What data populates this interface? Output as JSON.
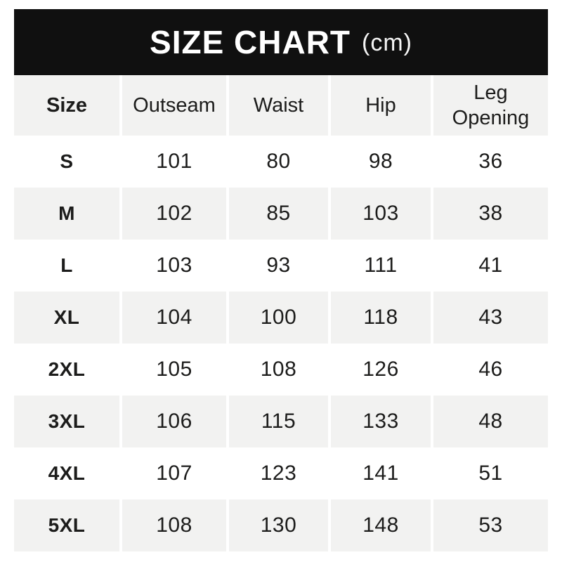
{
  "header": {
    "title": "SIZE CHART",
    "unit": "(cm)"
  },
  "table": {
    "columns": [
      "Size",
      "Outseam",
      "Waist",
      "Hip",
      "Leg Opening"
    ],
    "rows": [
      {
        "size": "S",
        "values": [
          "101",
          "80",
          "98",
          "36"
        ]
      },
      {
        "size": "M",
        "values": [
          "102",
          "85",
          "103",
          "38"
        ]
      },
      {
        "size": "L",
        "values": [
          "103",
          "93",
          "111",
          "41"
        ]
      },
      {
        "size": "XL",
        "values": [
          "104",
          "100",
          "118",
          "43"
        ]
      },
      {
        "size": "2XL",
        "values": [
          "105",
          "108",
          "126",
          "46"
        ]
      },
      {
        "size": "3XL",
        "values": [
          "106",
          "115",
          "133",
          "48"
        ]
      },
      {
        "size": "4XL",
        "values": [
          "107",
          "123",
          "141",
          "51"
        ]
      },
      {
        "size": "5XL",
        "values": [
          "108",
          "130",
          "148",
          "53"
        ]
      }
    ]
  },
  "colors": {
    "title_bar_bg": "#101010",
    "title_text": "#ffffff",
    "row_alt_bg": "#f2f2f1",
    "text": "#1c1c1b",
    "page_bg": "#ffffff"
  },
  "chart_data": {
    "type": "table",
    "title": "SIZE CHART (cm)",
    "units": "cm",
    "columns": [
      "Size",
      "Outseam",
      "Waist",
      "Hip",
      "Leg Opening"
    ],
    "rows": [
      [
        "S",
        101,
        80,
        98,
        36
      ],
      [
        "M",
        102,
        85,
        103,
        38
      ],
      [
        "L",
        103,
        93,
        111,
        41
      ],
      [
        "XL",
        104,
        100,
        118,
        43
      ],
      [
        "2XL",
        105,
        108,
        126,
        46
      ],
      [
        "3XL",
        106,
        115,
        133,
        48
      ],
      [
        "4XL",
        107,
        123,
        141,
        51
      ],
      [
        "5XL",
        108,
        130,
        148,
        53
      ]
    ]
  }
}
